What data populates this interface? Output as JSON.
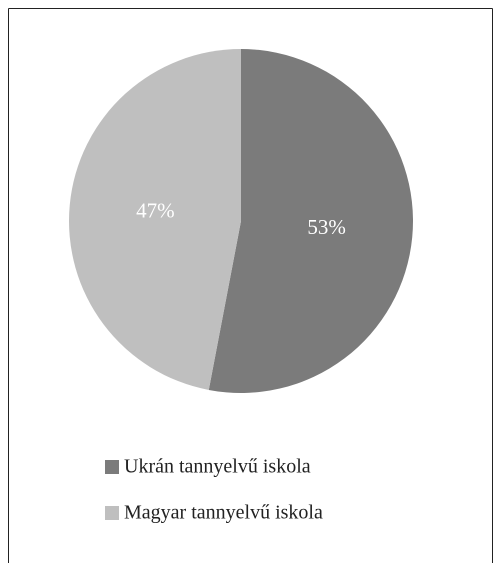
{
  "chart_data": {
    "type": "pie",
    "categories": [
      "Ukrán tannyelvű iskola",
      "Magyar tannyelvű iskola"
    ],
    "values": [
      53,
      47
    ],
    "value_labels": [
      "53%",
      "47%"
    ],
    "colors": [
      "#7b7b7b",
      "#bfbfbf"
    ],
    "legend": "bottom"
  }
}
